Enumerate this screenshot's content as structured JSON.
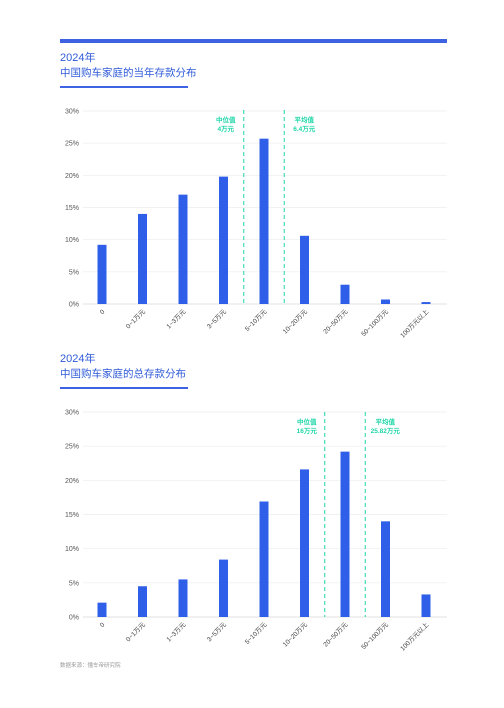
{
  "chart_data": [
    {
      "type": "bar",
      "title_year": "2024年",
      "title": "中国购车家庭的当年存款分布",
      "categories": [
        "0",
        "0~1万元",
        "1~3万元",
        "3~5万元",
        "5~10万元",
        "10~20万元",
        "20~50万元",
        "50~100万元",
        "100万元以上"
      ],
      "values": [
        9.2,
        14.0,
        17.0,
        19.8,
        25.7,
        10.6,
        3.0,
        0.7,
        0.3
      ],
      "y_ticks": [
        "0%",
        "5%",
        "10%",
        "15%",
        "20%",
        "25%",
        "30%"
      ],
      "ylim": [
        0,
        30
      ],
      "bar_color": "#2f5fe8",
      "annotations": [
        {
          "label": "中位值",
          "value": "4万元",
          "x_boundary": 3.5,
          "text_side": "left",
          "color": "#1ed6a8"
        },
        {
          "label": "平均值",
          "value": "6.4万元",
          "x_boundary": 4.5,
          "text_side": "right",
          "color": "#1ed6a8"
        }
      ],
      "grid": true
    },
    {
      "type": "bar",
      "title_year": "2024年",
      "title": "中国购车家庭的总存款分布",
      "categories": [
        "0",
        "0~1万元",
        "1~3万元",
        "3~5万元",
        "5~10万元",
        "10~20万元",
        "20~50万元",
        "50~100万元",
        "100万元以上"
      ],
      "values": [
        2.1,
        4.5,
        5.5,
        8.4,
        16.9,
        21.6,
        24.2,
        14.0,
        3.3
      ],
      "y_ticks": [
        "0%",
        "5%",
        "10%",
        "15%",
        "20%",
        "25%",
        "30%"
      ],
      "ylim": [
        0,
        30
      ],
      "bar_color": "#2f5fe8",
      "annotations": [
        {
          "label": "中位值",
          "value": "16万元",
          "x_boundary": 5.5,
          "text_side": "left",
          "color": "#1ed6a8"
        },
        {
          "label": "平均值",
          "value": "25.82万元",
          "x_boundary": 6.5,
          "text_side": "right",
          "color": "#1ed6a8"
        }
      ],
      "grid": true
    }
  ],
  "footnote": "数据来源：懂车帝研究院"
}
